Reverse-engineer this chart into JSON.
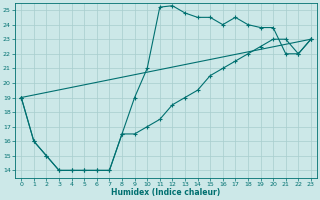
{
  "xlabel": "Humidex (Indice chaleur)",
  "xlim": [
    -0.5,
    23.5
  ],
  "ylim": [
    13.5,
    25.5
  ],
  "xticks": [
    0,
    1,
    2,
    3,
    4,
    5,
    6,
    7,
    8,
    9,
    10,
    11,
    12,
    13,
    14,
    15,
    16,
    17,
    18,
    19,
    20,
    21,
    22,
    23
  ],
  "yticks": [
    14,
    15,
    16,
    17,
    18,
    19,
    20,
    21,
    22,
    23,
    24,
    25
  ],
  "background_color": "#cce8e8",
  "grid_color": "#a8cece",
  "line_color": "#007070",
  "line1_x": [
    0,
    1,
    2,
    3,
    4,
    5,
    6,
    7,
    8,
    9,
    10,
    11,
    12,
    13,
    14,
    15,
    16,
    17,
    18,
    19,
    20,
    21,
    22,
    23
  ],
  "line1_y": [
    19.0,
    16.0,
    15.0,
    14.0,
    14.0,
    14.0,
    14.0,
    14.0,
    16.5,
    19.0,
    21.0,
    25.2,
    25.3,
    24.8,
    24.5,
    24.5,
    24.0,
    24.5,
    24.0,
    23.8,
    23.8,
    22.0,
    22.0,
    23.0
  ],
  "line2_x": [
    0,
    1,
    2,
    3,
    4,
    5,
    6,
    7,
    8,
    9,
    10,
    11,
    12,
    13,
    14,
    15,
    16,
    17,
    18,
    19,
    20,
    21,
    22,
    23
  ],
  "line2_y": [
    19.0,
    16.0,
    15.0,
    14.0,
    14.0,
    14.0,
    14.0,
    14.0,
    16.5,
    16.5,
    17.0,
    17.5,
    18.5,
    19.0,
    19.5,
    20.5,
    21.0,
    21.5,
    22.0,
    22.5,
    23.0,
    23.0,
    22.0,
    23.0
  ],
  "line3_x": [
    0,
    23
  ],
  "line3_y": [
    19.0,
    23.0
  ]
}
